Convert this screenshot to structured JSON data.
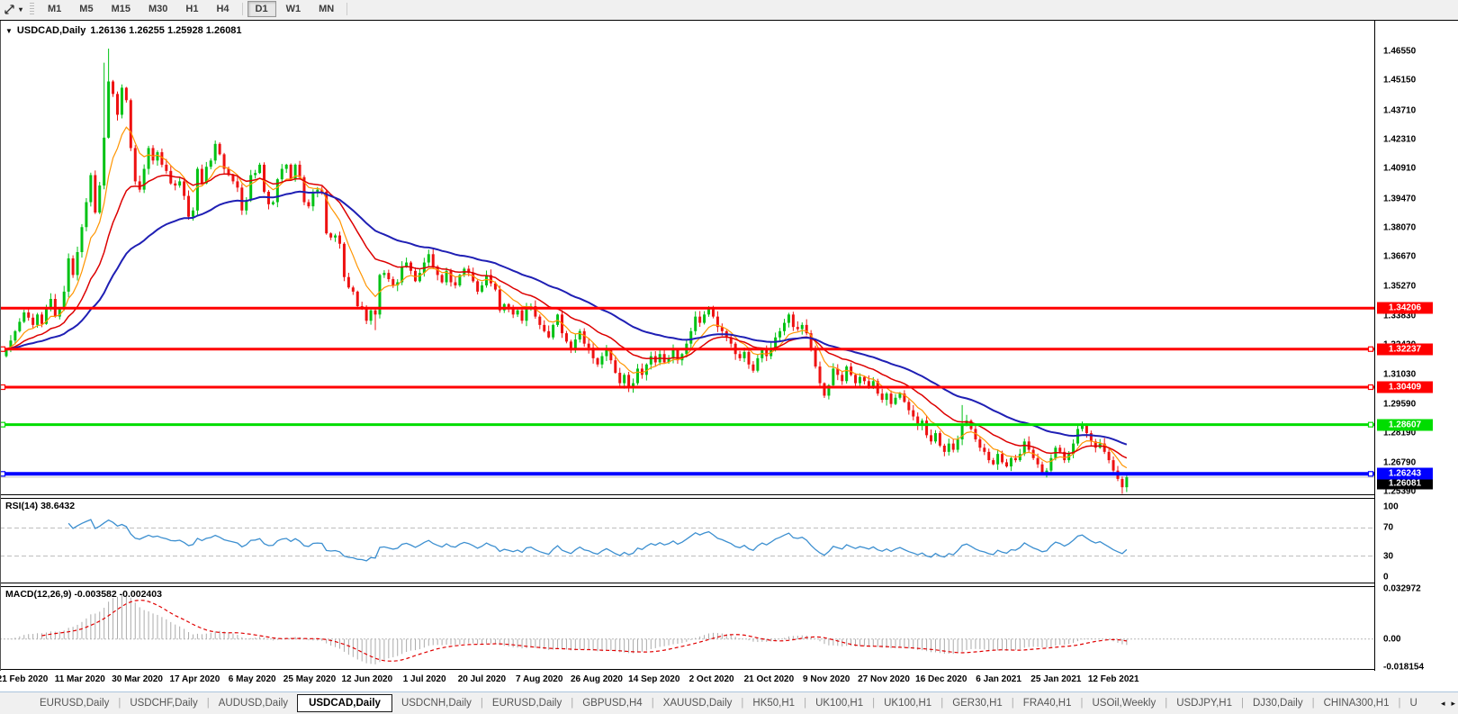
{
  "toolbar": {
    "cursor_tool": "cursor-crosshair-tool",
    "timeframes": [
      "M1",
      "M5",
      "M15",
      "M30",
      "H1",
      "H4",
      "D1",
      "W1",
      "MN"
    ],
    "selected_timeframe": "D1"
  },
  "chart": {
    "header_title": "USDCAD,Daily",
    "header_ohlc": "1.26136 1.26255 1.25928 1.26081"
  },
  "price_axis_ticks": [
    "1.46550",
    "1.45150",
    "1.43710",
    "1.42310",
    "1.40910",
    "1.39470",
    "1.38070",
    "1.36670",
    "1.35270",
    "1.33830",
    "1.32430",
    "1.31030",
    "1.29590",
    "1.28190",
    "1.26790",
    "1.25390"
  ],
  "rsi": {
    "label": "RSI(14) 38.6432",
    "value": 38.6432,
    "period": 14,
    "axis_ticks": [
      "100",
      "70",
      "30",
      "0"
    ],
    "dashed_levels": [
      70,
      30
    ],
    "line_color": "#3c8fd0"
  },
  "macd": {
    "label": "MACD(12,26,9) -0.003582 -0.002403",
    "values": [
      -0.003582,
      -0.002403
    ],
    "axis_ticks": [
      "0.032972",
      "0.00",
      "-0.018154"
    ],
    "scale_max": 0.0345,
    "scale_min": -0.0195,
    "hist_color": "#ababab",
    "signal_color": "#e00000"
  },
  "date_axis": [
    "21 Feb 2020",
    "11 Mar 2020",
    "30 Mar 2020",
    "17 Apr 2020",
    "6 May 2020",
    "25 May 2020",
    "12 Jun 2020",
    "1 Jul 2020",
    "20 Jul 2020",
    "7 Aug 2020",
    "26 Aug 2020",
    "14 Sep 2020",
    "2 Oct 2020",
    "21 Oct 2020",
    "9 Nov 2020",
    "27 Nov 2020",
    "16 Dec 2020",
    "6 Jan 2021",
    "25 Jan 2021",
    "12 Feb 2021"
  ],
  "tabs": {
    "items": [
      "EURUSD,Daily",
      "USDCHF,Daily",
      "AUDUSD,Daily",
      "USDCAD,Daily",
      "USDCNH,Daily",
      "EURUSD,Daily",
      "GBPUSD,H4",
      "XAUUSD,Daily",
      "HK50,H1",
      "UK100,H1",
      "UK100,H1",
      "GER30,H1",
      "FRA40,H1",
      "USOil,Weekly",
      "USDJPY,H1",
      "DJ30,Daily",
      "CHINA300,H1",
      "U"
    ],
    "active_index": 3
  },
  "chart_data": {
    "type": "candlestick",
    "symbol": "USDCAD",
    "timeframe": "Daily",
    "up_color": "#00c214",
    "down_color": "#ee1111",
    "first_open": 1.319,
    "closes": [
      1.3225,
      1.3265,
      1.331,
      1.3355,
      1.34,
      1.3375,
      1.334,
      1.339,
      1.3345,
      1.342,
      1.3465,
      1.338,
      1.3415,
      1.35,
      1.366,
      1.358,
      1.369,
      1.381,
      1.393,
      1.406,
      1.388,
      1.401,
      1.424,
      1.451,
      1.445,
      1.435,
      1.448,
      1.442,
      1.419,
      1.403,
      1.399,
      1.409,
      1.419,
      1.413,
      1.417,
      1.411,
      1.408,
      1.402,
      1.401,
      1.403,
      1.396,
      1.386,
      1.389,
      1.409,
      1.402,
      1.41,
      1.413,
      1.421,
      1.416,
      1.409,
      1.406,
      1.403,
      1.4,
      1.389,
      1.394,
      1.406,
      1.407,
      1.411,
      1.398,
      1.392,
      1.393,
      1.404,
      1.409,
      1.411,
      1.404,
      1.411,
      1.405,
      1.393,
      1.391,
      1.398,
      1.399,
      1.398,
      1.378,
      1.376,
      1.377,
      1.373,
      1.357,
      1.352,
      1.35,
      1.343,
      1.342,
      1.336,
      1.341,
      1.339,
      1.358,
      1.359,
      1.356,
      1.353,
      1.3545,
      1.362,
      1.364,
      1.36,
      1.355,
      1.359,
      1.364,
      1.368,
      1.362,
      1.358,
      1.3545,
      1.36,
      1.3545,
      1.353,
      1.358,
      1.361,
      1.359,
      1.355,
      1.35,
      1.353,
      1.358,
      1.354,
      1.351,
      1.341,
      1.344,
      1.342,
      1.339,
      1.341,
      1.336,
      1.342,
      1.343,
      1.338,
      1.334,
      1.331,
      1.328,
      1.334,
      1.339,
      1.33,
      1.326,
      1.322,
      1.327,
      1.331,
      1.325,
      1.323,
      1.318,
      1.315,
      1.319,
      1.322,
      1.317,
      1.311,
      1.306,
      1.31,
      1.304,
      1.306,
      1.313,
      1.31,
      1.315,
      1.319,
      1.316,
      1.32,
      1.316,
      1.318,
      1.322,
      1.317,
      1.32,
      1.325,
      1.331,
      1.338,
      1.335,
      1.339,
      1.342,
      1.338,
      1.333,
      1.331,
      1.328,
      1.325,
      1.32,
      1.318,
      1.321,
      1.315,
      1.312,
      1.318,
      1.322,
      1.319,
      1.323,
      1.328,
      1.331,
      1.335,
      1.339,
      1.333,
      1.332,
      1.334,
      1.33,
      1.322,
      1.314,
      1.306,
      1.3,
      1.305,
      1.313,
      1.31,
      1.307,
      1.314,
      1.31,
      1.306,
      1.309,
      1.307,
      1.304,
      1.307,
      1.301,
      1.298,
      1.301,
      1.296,
      1.299,
      1.301,
      1.297,
      1.293,
      1.29,
      1.286,
      1.288,
      1.281,
      1.278,
      1.282,
      1.276,
      1.273,
      1.277,
      1.274,
      1.279,
      1.286,
      1.288,
      1.284,
      1.279,
      1.275,
      1.273,
      1.269,
      1.267,
      1.272,
      1.268,
      1.266,
      1.27,
      1.269,
      1.272,
      1.278,
      1.274,
      1.27,
      1.267,
      1.263,
      1.264,
      1.27,
      1.275,
      1.273,
      1.269,
      1.272,
      1.277,
      1.284,
      1.286,
      1.282,
      1.278,
      1.275,
      1.277,
      1.273,
      1.269,
      1.264,
      1.26,
      1.256,
      1.2608
    ],
    "wick_overrides": {
      "22": {
        "h": 1.46
      },
      "23": {
        "h": 1.4668
      },
      "83": {
        "l": 1.3315
      },
      "215": {
        "h": 1.2955
      },
      "251": {
        "l": 1.2528
      },
      "252": {
        "l": 1.2537
      }
    },
    "moving_averages": [
      {
        "method": "ema",
        "period": 8,
        "color": "#ff9500",
        "width": 1.2
      },
      {
        "method": "ema",
        "period": 20,
        "color": "#dd0000",
        "width": 1.5
      },
      {
        "method": "ema",
        "period": 45,
        "color": "#1f1fb4",
        "width": 2
      }
    ],
    "levels": [
      {
        "price": 1.34206,
        "label": "1.34206",
        "color": "#ff0000",
        "thickness": 3,
        "handles": false
      },
      {
        "price": 1.32237,
        "label": "1.32237",
        "color": "#ff0000",
        "thickness": 3,
        "handles": true
      },
      {
        "price": 1.30409,
        "label": "1.30409",
        "color": "#ff0000",
        "thickness": 3,
        "handles": true
      },
      {
        "price": 1.28607,
        "label": "1.28607",
        "color": "#00dd00",
        "thickness": 3,
        "handles": true
      },
      {
        "price": 1.26243,
        "label": "1.26243",
        "color": "#0000ff",
        "thickness": 4,
        "handles": true
      }
    ],
    "current_price": {
      "value": 1.26081,
      "label": "1.26081",
      "line_color": "#c8c8c8",
      "box_color": "#000000"
    },
    "y_axis_range_main": [
      1.2526,
      1.4802
    ]
  }
}
